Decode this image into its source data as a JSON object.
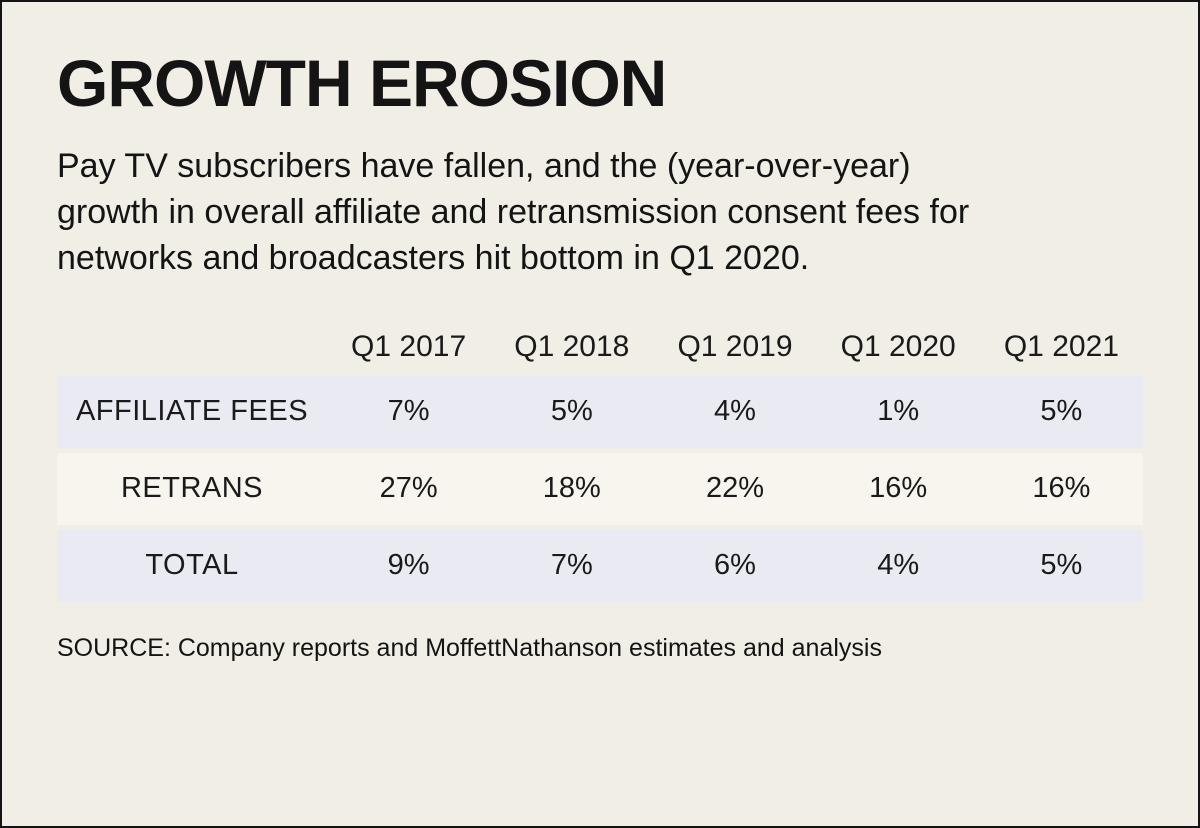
{
  "page": {
    "title": "GROWTH EROSION",
    "subtitle": "Pay TV subscribers have fallen, and the (year-over-year) growth in overall affiliate and retransmission consent fees for networks and broadcasters hit bottom in Q1 2020.",
    "source": "SOURCE: Company reports and MoffettNathanson estimates and analysis"
  },
  "colors": {
    "background": "#f0eee5",
    "row_shade_blue": "#eaebf2",
    "row_shade_cream": "#f7f5ee",
    "text": "#141414"
  },
  "chart_data": {
    "type": "table",
    "title": "GROWTH EROSION",
    "categories": [
      "Q1 2017",
      "Q1 2018",
      "Q1 2019",
      "Q1 2020",
      "Q1 2021"
    ],
    "unit": "%",
    "series": [
      {
        "name": "AFFILIATE FEES",
        "values": [
          7,
          5,
          4,
          1,
          5
        ],
        "display": [
          "7%",
          "5%",
          "4%",
          "1%",
          "5%"
        ]
      },
      {
        "name": "RETRANS",
        "values": [
          27,
          18,
          22,
          16,
          16
        ],
        "display": [
          "27%",
          "18%",
          "22%",
          "16%",
          "16%"
        ]
      },
      {
        "name": "TOTAL",
        "values": [
          9,
          7,
          6,
          4,
          5
        ],
        "display": [
          "9%",
          "7%",
          "6%",
          "4%",
          "5%"
        ]
      }
    ],
    "layout": {
      "grid": false,
      "legend": false,
      "row_striping": [
        "blue",
        "cream",
        "blue"
      ]
    }
  }
}
